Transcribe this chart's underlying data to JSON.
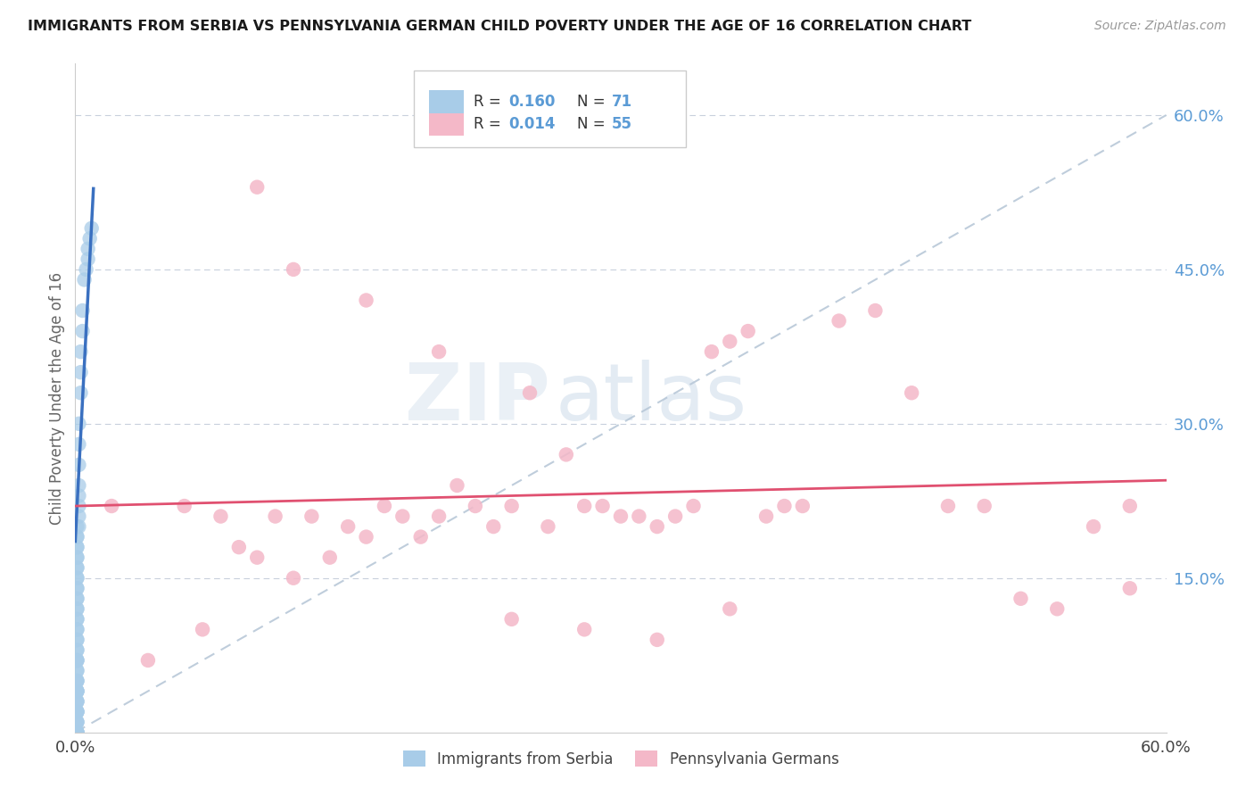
{
  "title": "IMMIGRANTS FROM SERBIA VS PENNSYLVANIA GERMAN CHILD POVERTY UNDER THE AGE OF 16 CORRELATION CHART",
  "source": "Source: ZipAtlas.com",
  "ylabel": "Child Poverty Under the Age of 16",
  "right_yticks": [
    "60.0%",
    "45.0%",
    "30.0%",
    "15.0%"
  ],
  "right_ytick_vals": [
    0.6,
    0.45,
    0.3,
    0.15
  ],
  "legend_r1": "0.160",
  "legend_n1": "71",
  "legend_r2": "0.014",
  "legend_n2": "55",
  "color_blue": "#a8cce8",
  "color_pink": "#f4b8c8",
  "color_blue_line": "#3a70c0",
  "color_pink_line": "#e05070",
  "color_dash_line": "#b8c8d8",
  "serbia_x": [
    0.001,
    0.001,
    0.001,
    0.001,
    0.001,
    0.001,
    0.001,
    0.001,
    0.001,
    0.001,
    0.001,
    0.001,
    0.001,
    0.001,
    0.001,
    0.001,
    0.001,
    0.001,
    0.001,
    0.001,
    0.001,
    0.001,
    0.001,
    0.001,
    0.001,
    0.001,
    0.001,
    0.001,
    0.001,
    0.001,
    0.001,
    0.001,
    0.001,
    0.001,
    0.001,
    0.001,
    0.001,
    0.001,
    0.001,
    0.001,
    0.001,
    0.001,
    0.001,
    0.001,
    0.001,
    0.001,
    0.001,
    0.001,
    0.001,
    0.001,
    0.001,
    0.001,
    0.002,
    0.002,
    0.002,
    0.002,
    0.002,
    0.002,
    0.002,
    0.002,
    0.003,
    0.003,
    0.003,
    0.004,
    0.004,
    0.005,
    0.006,
    0.007,
    0.007,
    0.008,
    0.009
  ],
  "serbia_y": [
    0.0,
    0.0,
    0.0,
    0.0,
    0.0,
    0.01,
    0.01,
    0.01,
    0.02,
    0.02,
    0.02,
    0.02,
    0.03,
    0.03,
    0.03,
    0.04,
    0.04,
    0.04,
    0.04,
    0.05,
    0.05,
    0.05,
    0.06,
    0.06,
    0.07,
    0.07,
    0.07,
    0.08,
    0.08,
    0.09,
    0.09,
    0.1,
    0.1,
    0.11,
    0.11,
    0.12,
    0.12,
    0.13,
    0.13,
    0.14,
    0.14,
    0.15,
    0.15,
    0.16,
    0.16,
    0.17,
    0.17,
    0.18,
    0.18,
    0.19,
    0.19,
    0.2,
    0.2,
    0.21,
    0.22,
    0.23,
    0.24,
    0.26,
    0.28,
    0.3,
    0.33,
    0.35,
    0.37,
    0.39,
    0.41,
    0.44,
    0.45,
    0.46,
    0.47,
    0.48,
    0.49
  ],
  "pa_german_x": [
    0.02,
    0.04,
    0.06,
    0.07,
    0.08,
    0.09,
    0.1,
    0.11,
    0.12,
    0.13,
    0.14,
    0.15,
    0.16,
    0.17,
    0.18,
    0.19,
    0.2,
    0.21,
    0.22,
    0.23,
    0.24,
    0.25,
    0.26,
    0.27,
    0.28,
    0.29,
    0.3,
    0.31,
    0.32,
    0.33,
    0.34,
    0.35,
    0.36,
    0.37,
    0.38,
    0.39,
    0.4,
    0.42,
    0.44,
    0.46,
    0.48,
    0.5,
    0.52,
    0.54,
    0.56,
    0.58,
    0.12,
    0.16,
    0.2,
    0.24,
    0.28,
    0.32,
    0.36,
    0.58,
    0.1
  ],
  "pa_german_y": [
    0.22,
    0.07,
    0.22,
    0.1,
    0.21,
    0.18,
    0.17,
    0.21,
    0.15,
    0.21,
    0.17,
    0.2,
    0.19,
    0.22,
    0.21,
    0.19,
    0.21,
    0.24,
    0.22,
    0.2,
    0.22,
    0.33,
    0.2,
    0.27,
    0.22,
    0.22,
    0.21,
    0.21,
    0.2,
    0.21,
    0.22,
    0.37,
    0.38,
    0.39,
    0.21,
    0.22,
    0.22,
    0.4,
    0.41,
    0.33,
    0.22,
    0.22,
    0.13,
    0.12,
    0.2,
    0.22,
    0.45,
    0.42,
    0.37,
    0.11,
    0.1,
    0.09,
    0.12,
    0.14,
    0.53
  ],
  "xmin": 0.0,
  "xmax": 0.6,
  "ymin": 0.0,
  "ymax": 0.65,
  "watermark_zip": "ZIP",
  "watermark_atlas": "atlas",
  "legend_label1": "Immigrants from Serbia",
  "legend_label2": "Pennsylvania Germans"
}
